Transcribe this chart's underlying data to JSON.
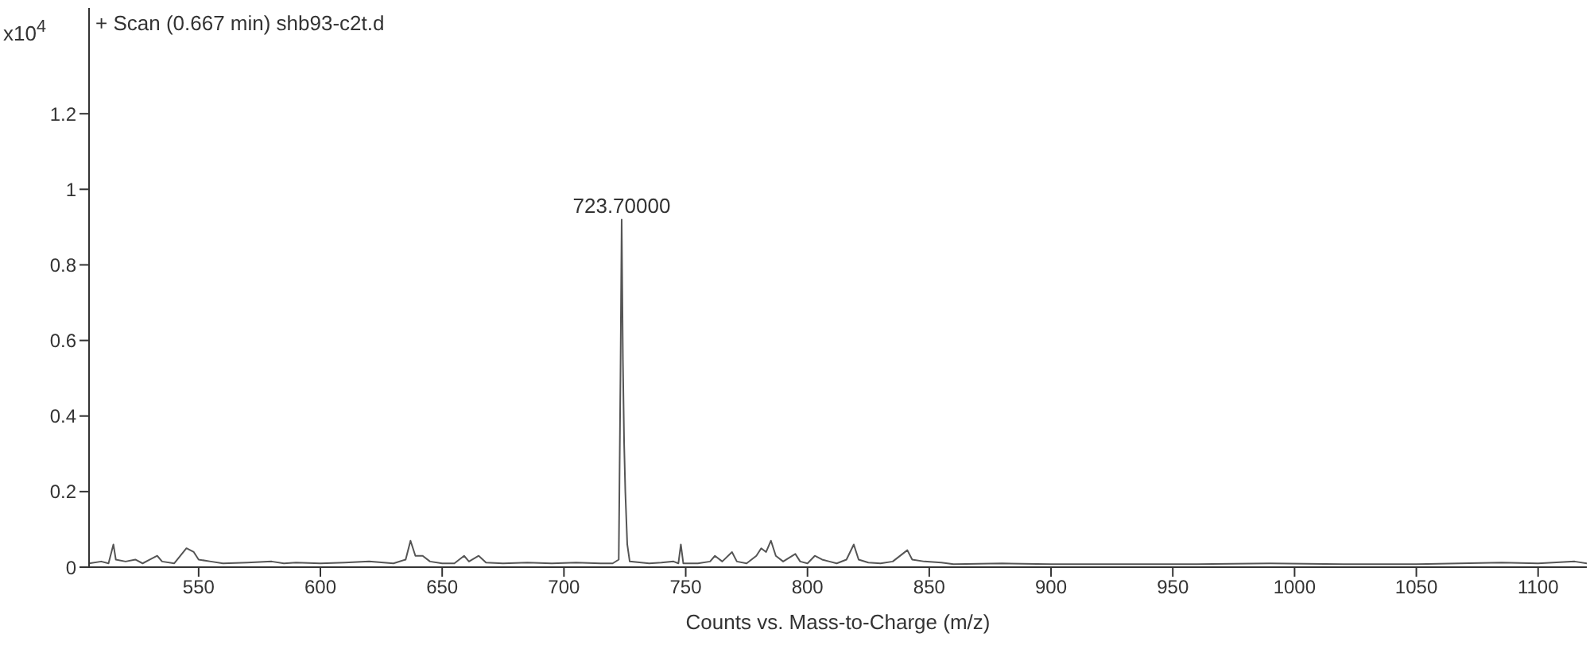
{
  "chart_data": {
    "type": "line",
    "title": "+ Scan (0.667 min) shb93-c2t.d",
    "xlabel": "Counts vs. Mass-to-Charge (m/z)",
    "annotations": [
      "x10$^{4}$",
      {
        "text": "723.70000",
        "x": 723.7,
        "y": 0.92
      }
    ],
    "x": [
      505,
      510,
      513,
      515,
      516,
      520,
      524,
      527,
      530,
      533,
      535,
      540,
      545,
      548,
      550,
      555,
      560,
      570,
      580,
      585,
      590,
      600,
      610,
      620,
      630,
      635,
      637,
      639,
      642,
      645,
      650,
      655,
      659,
      661,
      665,
      668,
      675,
      685,
      695,
      705,
      715,
      720,
      722.5,
      723.2,
      723.7,
      724.2,
      724.7,
      725.2,
      726,
      727,
      735,
      740,
      745,
      747,
      748,
      749,
      755,
      760,
      762,
      765,
      769,
      771,
      775,
      779,
      781,
      783,
      785,
      787,
      790,
      795,
      797,
      800,
      803,
      806,
      809,
      812,
      816,
      819,
      821,
      825,
      830,
      835,
      841,
      843,
      848,
      855,
      860,
      880,
      900,
      930,
      960,
      990,
      1020,
      1050,
      1085,
      1100,
      1115,
      1120
    ],
    "values": [
      0.01,
      0.015,
      0.01,
      0.06,
      0.02,
      0.015,
      0.02,
      0.01,
      0.02,
      0.03,
      0.015,
      0.01,
      0.05,
      0.04,
      0.02,
      0.015,
      0.01,
      0.012,
      0.015,
      0.01,
      0.012,
      0.01,
      0.012,
      0.015,
      0.01,
      0.02,
      0.07,
      0.03,
      0.03,
      0.015,
      0.01,
      0.01,
      0.03,
      0.015,
      0.03,
      0.012,
      0.01,
      0.012,
      0.01,
      0.012,
      0.01,
      0.01,
      0.02,
      0.5,
      0.92,
      0.55,
      0.33,
      0.2,
      0.06,
      0.015,
      0.01,
      0.012,
      0.015,
      0.01,
      0.06,
      0.01,
      0.01,
      0.015,
      0.03,
      0.015,
      0.04,
      0.015,
      0.01,
      0.03,
      0.05,
      0.04,
      0.07,
      0.03,
      0.015,
      0.035,
      0.015,
      0.01,
      0.03,
      0.02,
      0.015,
      0.01,
      0.02,
      0.06,
      0.02,
      0.012,
      0.01,
      0.015,
      0.045,
      0.02,
      0.015,
      0.012,
      0.008,
      0.01,
      0.008,
      0.008,
      0.008,
      0.01,
      0.008,
      0.008,
      0.012,
      0.01,
      0.015,
      0.01
    ],
    "color": "#555555",
    "xlim": [
      505,
      1120
    ],
    "ylim": [
      0,
      1.48
    ],
    "xticks": [
      550,
      600,
      650,
      700,
      750,
      800,
      850,
      900,
      950,
      1000,
      1050,
      1100
    ],
    "yticks": [
      0,
      0.2,
      0.4,
      0.6,
      0.8,
      1,
      1.2
    ]
  }
}
